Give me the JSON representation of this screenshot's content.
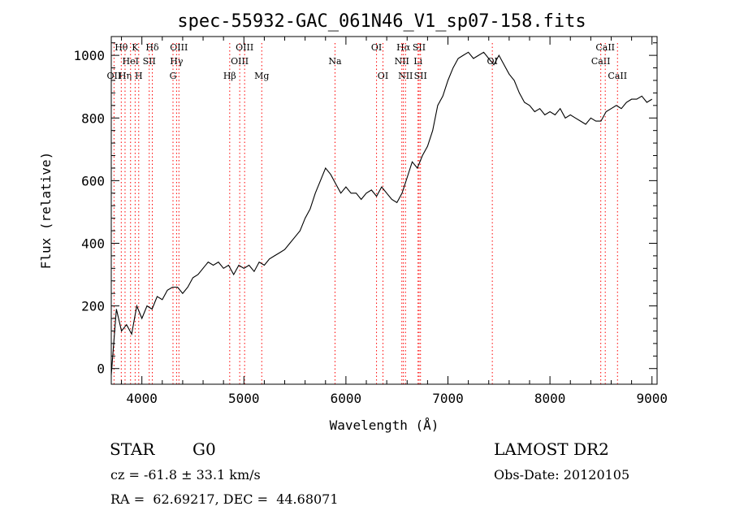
{
  "chart_data": {
    "type": "line",
    "title": "spec-55932-GAC_061N46_V1_sp07-158.fits",
    "xlabel": "Wavelength (Å)",
    "ylabel": "Flux (relative)",
    "xlim": [
      3700,
      9050
    ],
    "ylim": [
      -50,
      1060
    ],
    "xticks": [
      4000,
      5000,
      6000,
      7000,
      8000,
      9000
    ],
    "yticks": [
      0,
      200,
      400,
      600,
      800,
      1000
    ],
    "grid": false,
    "line_color": "#000000",
    "marker_color": "#ff0000",
    "series": [
      {
        "x": [
          3700,
          3750,
          3800,
          3850,
          3900,
          3950,
          4000,
          4050,
          4100,
          4150,
          4200,
          4250,
          4300,
          4350,
          4400,
          4450,
          4500,
          4550,
          4600,
          4650,
          4700,
          4750,
          4800,
          4850,
          4900,
          4950,
          5000,
          5050,
          5100,
          5150,
          5200,
          5250,
          5300,
          5350,
          5400,
          5450,
          5500,
          5550,
          5600,
          5650,
          5700,
          5750,
          5800,
          5850,
          5900,
          5950,
          6000,
          6050,
          6100,
          6150,
          6200,
          6250,
          6300,
          6350,
          6400,
          6450,
          6500,
          6550,
          6600,
          6650,
          6700,
          6750,
          6800,
          6850,
          6900,
          6950,
          7000,
          7050,
          7100,
          7150,
          7200,
          7250,
          7300,
          7350,
          7400,
          7450,
          7500,
          7550,
          7600,
          7650,
          7700,
          7750,
          7800,
          7850,
          7900,
          7950,
          8000,
          8050,
          8100,
          8150,
          8200,
          8250,
          8300,
          8350,
          8400,
          8450,
          8500,
          8550,
          8600,
          8650,
          8700,
          8750,
          8800,
          8850,
          8900,
          8950,
          9000
        ],
        "y": [
          -20,
          190,
          120,
          140,
          110,
          200,
          160,
          200,
          190,
          230,
          220,
          250,
          260,
          260,
          240,
          260,
          290,
          300,
          320,
          340,
          330,
          340,
          320,
          330,
          300,
          330,
          320,
          330,
          310,
          340,
          330,
          350,
          360,
          370,
          380,
          400,
          420,
          440,
          480,
          510,
          560,
          600,
          640,
          620,
          590,
          560,
          580,
          560,
          560,
          540,
          560,
          570,
          550,
          580,
          560,
          540,
          530,
          560,
          610,
          660,
          640,
          680,
          710,
          760,
          840,
          870,
          920,
          960,
          990,
          1000,
          1010,
          990,
          1000,
          1010,
          990,
          970,
          1000,
          970,
          940,
          920,
          880,
          850,
          840,
          820,
          830,
          810,
          820,
          810,
          830,
          800,
          810,
          800,
          790,
          780,
          800,
          790,
          790,
          820,
          830,
          840,
          830,
          850,
          860,
          860,
          870,
          850,
          860
        ]
      }
    ],
    "lines": [
      {
        "label": "OII",
        "x": 3727,
        "row": 2
      },
      {
        "label": "Hθ",
        "x": 3798,
        "row": 0
      },
      {
        "label": "Hη",
        "x": 3835,
        "row": 2
      },
      {
        "label": "K",
        "x": 3934,
        "row": 0
      },
      {
        "label": "HeI",
        "x": 3889,
        "row": 1
      },
      {
        "label": "H",
        "x": 3969,
        "row": 2
      },
      {
        "label": "SII",
        "x": 4072,
        "row": 1
      },
      {
        "label": "Hδ",
        "x": 4102,
        "row": 0
      },
      {
        "label": "OIII",
        "x": 4363,
        "row": 0
      },
      {
        "label": "Hγ",
        "x": 4340,
        "row": 1
      },
      {
        "label": "G",
        "x": 4305,
        "row": 2
      },
      {
        "label": "Hβ",
        "x": 4861,
        "row": 2
      },
      {
        "label": "OIII",
        "x": 4959,
        "row": 1
      },
      {
        "label": "OIII",
        "x": 5007,
        "row": 0
      },
      {
        "label": "Mg",
        "x": 5175,
        "row": 2
      },
      {
        "label": "Na",
        "x": 5893,
        "row": 1
      },
      {
        "label": "OI",
        "x": 6300,
        "row": 0
      },
      {
        "label": "OI",
        "x": 6363,
        "row": 2
      },
      {
        "label": "Hα",
        "x": 6563,
        "row": 0
      },
      {
        "label": "NII",
        "x": 6548,
        "row": 1
      },
      {
        "label": "NII",
        "x": 6584,
        "row": 2
      },
      {
        "label": "SII",
        "x": 6717,
        "row": 0
      },
      {
        "label": "Li",
        "x": 6707,
        "row": 1
      },
      {
        "label": "SII",
        "x": 6731,
        "row": 2
      },
      {
        "label": "OI",
        "x": 7435,
        "row": 1
      },
      {
        "label": "CaII",
        "x": 8498,
        "row": 1
      },
      {
        "label": "CaII",
        "x": 8542,
        "row": 0
      },
      {
        "label": "CaII",
        "x": 8662,
        "row": 2
      }
    ]
  },
  "info": {
    "object": "STAR",
    "subclass": "G0",
    "survey": "LAMOST DR2",
    "redshift": "cz = -61.8 ± 33.1 km/s",
    "obs_date": "Obs-Date: 20120105",
    "coords": "RA =  62.69217, DEC =  44.68071"
  }
}
